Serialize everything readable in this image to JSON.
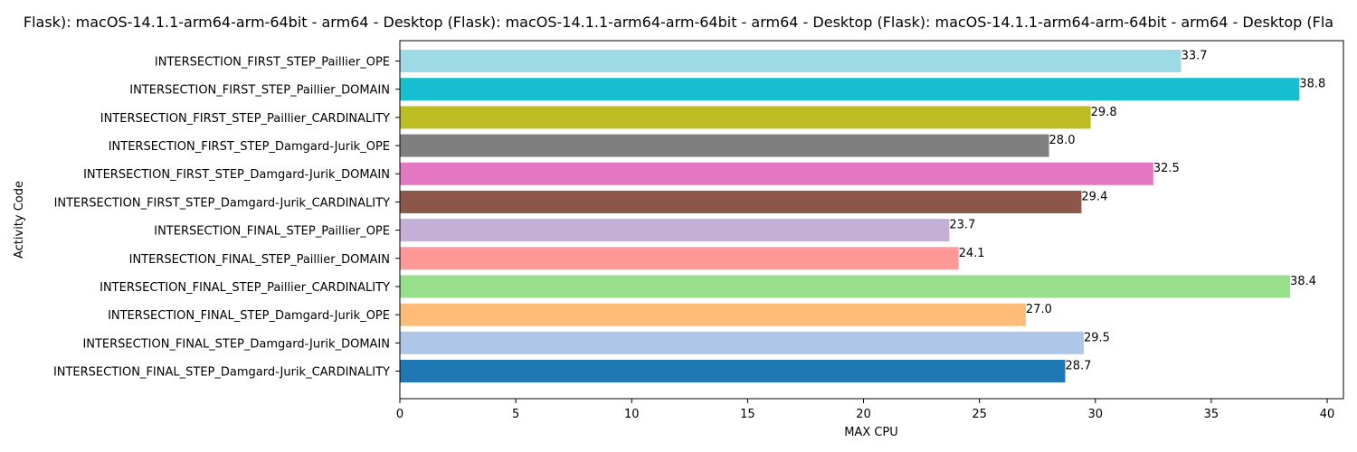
{
  "chart_data": {
    "type": "bar",
    "orientation": "horizontal",
    "title": "Flask): macOS-14.1.1-arm64-arm-64bit - arm64 - Desktop (Flask): macOS-14.1.1-arm64-arm-64bit - arm64 - Desktop (Flask): macOS-14.1.1-arm64-arm-64bit - arm64 - Desktop (Fla",
    "xlabel": "MAX CPU",
    "ylabel": "Activity Code",
    "xlim": [
      0,
      40.7
    ],
    "xticks": [
      "0",
      "5",
      "10",
      "15",
      "20",
      "25",
      "30",
      "35",
      "40"
    ],
    "grid": false,
    "categories": [
      "INTERSECTION_FINAL_STEP_Damgard-Jurik_CARDINALITY",
      "INTERSECTION_FINAL_STEP_Damgard-Jurik_DOMAIN",
      "INTERSECTION_FINAL_STEP_Damgard-Jurik_OPE",
      "INTERSECTION_FINAL_STEP_Paillier_CARDINALITY",
      "INTERSECTION_FINAL_STEP_Paillier_DOMAIN",
      "INTERSECTION_FINAL_STEP_Paillier_OPE",
      "INTERSECTION_FIRST_STEP_Damgard-Jurik_CARDINALITY",
      "INTERSECTION_FIRST_STEP_Damgard-Jurik_DOMAIN",
      "INTERSECTION_FIRST_STEP_Damgard-Jurik_OPE",
      "INTERSECTION_FIRST_STEP_Paillier_CARDINALITY",
      "INTERSECTION_FIRST_STEP_Paillier_DOMAIN",
      "INTERSECTION_FIRST_STEP_Paillier_OPE"
    ],
    "values": [
      28.7,
      29.5,
      27.0,
      38.4,
      24.1,
      23.7,
      29.4,
      32.5,
      28.0,
      29.8,
      38.8,
      33.7
    ],
    "value_labels": [
      "28.7",
      "29.5",
      "27.0",
      "38.4",
      "24.1",
      "23.7",
      "29.4",
      "32.5",
      "28.0",
      "29.8",
      "38.8",
      "33.7"
    ],
    "colors": [
      "#1f77b4",
      "#aec7e8",
      "#ffbb78",
      "#98df8a",
      "#ff9896",
      "#c5b0d5",
      "#8c564b",
      "#e377c2",
      "#7f7f7f",
      "#bcbd22",
      "#17becf",
      "#9edae5"
    ]
  }
}
